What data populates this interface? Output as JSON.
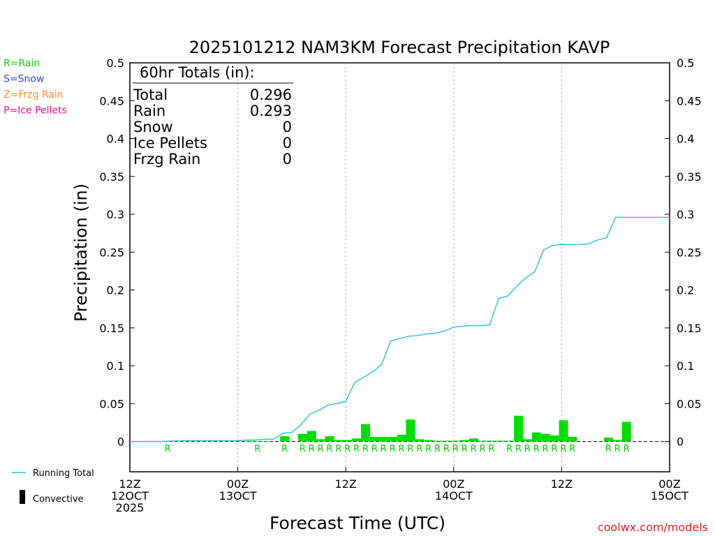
{
  "colors": {
    "rain": "#00dd00",
    "snow": "#3344ee",
    "frzg_rain": "#ff8833",
    "ice_pellets": "#ee1188",
    "running_total": "#22c4cc",
    "credit": "#e02020"
  },
  "type_legend": [
    {
      "text": "R=Rain",
      "color": "#11cc11"
    },
    {
      "text": "S=Snow",
      "color": "#3344ee"
    },
    {
      "text": "Z=Frzg Rain",
      "color": "#ff8833"
    },
    {
      "text": "P=Ice Pellets",
      "color": "#ee1188"
    }
  ],
  "series_legend": {
    "running_total": "Running Total",
    "convective": "Convective"
  },
  "totals": {
    "header": "60hr Totals (in):",
    "rows": [
      {
        "label": "Total",
        "value": "0.296"
      },
      {
        "label": "Rain",
        "value": "0.293"
      },
      {
        "label": "Snow",
        "value": "0"
      },
      {
        "label": "Ice Pellets",
        "value": "0"
      },
      {
        "label": "Frzg Rain",
        "value": "0"
      }
    ]
  },
  "credit": "coolwx.com/models",
  "chart_data": {
    "type": "bar",
    "title": "2025101212 NAM3KM Forecast Precipitation KAVP",
    "xlabel": "Forecast Time (UTC)",
    "ylabel": "Precipitation (in)",
    "ylim": [
      -0.04,
      0.5
    ],
    "xlim_hours": [
      0,
      60
    ],
    "yticks": [
      0,
      0.05,
      0.1,
      0.15,
      0.2,
      0.25,
      0.3,
      0.35,
      0.4,
      0.45,
      0.5
    ],
    "ytick_labels": [
      "0",
      "0.05",
      "0.1",
      "0.15",
      "0.2",
      "0.25",
      "0.3",
      "0.35",
      "0.4",
      "0.45",
      "0.5"
    ],
    "xticks": [
      {
        "hour": 0,
        "line1": "12Z",
        "line2": "12OCT",
        "line3": "2025"
      },
      {
        "hour": 12,
        "line1": "00Z",
        "line2": "13OCT",
        "line3": ""
      },
      {
        "hour": 24,
        "line1": "12Z",
        "line2": "",
        "line3": ""
      },
      {
        "hour": 36,
        "line1": "00Z",
        "line2": "14OCT",
        "line3": ""
      },
      {
        "hour": 48,
        "line1": "12Z",
        "line2": "",
        "line3": ""
      },
      {
        "hour": 60,
        "line1": "00Z",
        "line2": "15OCT",
        "line3": ""
      }
    ],
    "bars": [
      {
        "hour": 4.2,
        "value": 0.0005
      },
      {
        "hour": 13.4,
        "value": 0.0008
      },
      {
        "hour": 14.2,
        "value": 0.0005
      },
      {
        "hour": 15.2,
        "value": 0.0005
      },
      {
        "hour": 17.2,
        "value": 0.007
      },
      {
        "hour": 19.2,
        "value": 0.01
      },
      {
        "hour": 20.2,
        "value": 0.014
      },
      {
        "hour": 21.2,
        "value": 0.003
      },
      {
        "hour": 22.2,
        "value": 0.007
      },
      {
        "hour": 23.2,
        "value": 0.002
      },
      {
        "hour": 24.2,
        "value": 0.002
      },
      {
        "hour": 25.2,
        "value": 0.004
      },
      {
        "hour": 26.2,
        "value": 0.023
      },
      {
        "hour": 27.2,
        "value": 0.006
      },
      {
        "hour": 28.2,
        "value": 0.006
      },
      {
        "hour": 29.2,
        "value": 0.006
      },
      {
        "hour": 30.2,
        "value": 0.009
      },
      {
        "hour": 31.2,
        "value": 0.029
      },
      {
        "hour": 32.2,
        "value": 0.003
      },
      {
        "hour": 33.2,
        "value": 0.002
      },
      {
        "hour": 34.2,
        "value": 0.001
      },
      {
        "hour": 35.2,
        "value": 0.001
      },
      {
        "hour": 36.2,
        "value": 0.001
      },
      {
        "hour": 37.2,
        "value": 0.002
      },
      {
        "hour": 38.2,
        "value": 0.004
      },
      {
        "hour": 39.2,
        "value": 0.001
      },
      {
        "hour": 40.2,
        "value": 0.001
      },
      {
        "hour": 41.2,
        "value": 0.001
      },
      {
        "hour": 42.2,
        "value": 0.001
      },
      {
        "hour": 43.2,
        "value": 0.034
      },
      {
        "hour": 44.2,
        "value": 0.003
      },
      {
        "hour": 45.2,
        "value": 0.012
      },
      {
        "hour": 46.2,
        "value": 0.01
      },
      {
        "hour": 47.2,
        "value": 0.008
      },
      {
        "hour": 48.2,
        "value": 0.028
      },
      {
        "hour": 49.2,
        "value": 0.006
      },
      {
        "hour": 53.2,
        "value": 0.005
      },
      {
        "hour": 54.2,
        "value": 0.002
      },
      {
        "hour": 55.2,
        "value": 0.026
      }
    ],
    "running_total": {
      "hours": [
        0,
        3,
        6,
        9,
        12,
        13,
        14,
        15,
        16,
        17,
        18,
        19,
        20,
        21,
        22,
        23,
        24,
        25,
        26,
        27,
        28,
        29,
        30,
        31,
        32,
        33,
        34,
        35,
        36,
        37,
        38,
        39,
        40,
        41,
        42,
        43,
        44,
        45,
        46,
        47,
        48,
        49,
        50,
        51,
        52,
        53,
        54,
        55,
        56,
        60
      ],
      "values": [
        0,
        0,
        0.001,
        0.001,
        0.001,
        0.002,
        0.002,
        0.003,
        0.003,
        0.011,
        0.012,
        0.022,
        0.036,
        0.041,
        0.048,
        0.05,
        0.053,
        0.078,
        0.085,
        0.092,
        0.102,
        0.133,
        0.136,
        0.139,
        0.14,
        0.142,
        0.143,
        0.146,
        0.151,
        0.152,
        0.153,
        0.153,
        0.154,
        0.189,
        0.192,
        0.205,
        0.216,
        0.224,
        0.253,
        0.259,
        0.26,
        0.26,
        0.26,
        0.261,
        0.266,
        0.269,
        0.296,
        0.296,
        0.296,
        0.296
      ]
    },
    "precip_type_marks": [
      {
        "hour": 4.2,
        "type": "R"
      },
      {
        "hour": 14.2,
        "type": "R"
      },
      {
        "hour": 17.2,
        "type": "R"
      },
      {
        "hour": 19.2,
        "type": "R"
      },
      {
        "hour": 20.2,
        "type": "R"
      },
      {
        "hour": 21.2,
        "type": "R"
      },
      {
        "hour": 22.2,
        "type": "R"
      },
      {
        "hour": 23.2,
        "type": "R"
      },
      {
        "hour": 24.2,
        "type": "R"
      },
      {
        "hour": 25.2,
        "type": "R"
      },
      {
        "hour": 26.2,
        "type": "R"
      },
      {
        "hour": 27.2,
        "type": "R"
      },
      {
        "hour": 28.2,
        "type": "R"
      },
      {
        "hour": 29.2,
        "type": "R"
      },
      {
        "hour": 30.2,
        "type": "R"
      },
      {
        "hour": 31.2,
        "type": "R"
      },
      {
        "hour": 32.2,
        "type": "R"
      },
      {
        "hour": 33.2,
        "type": "R"
      },
      {
        "hour": 34.2,
        "type": "R"
      },
      {
        "hour": 35.2,
        "type": "R"
      },
      {
        "hour": 36.2,
        "type": "R"
      },
      {
        "hour": 37.2,
        "type": "R"
      },
      {
        "hour": 38.2,
        "type": "R"
      },
      {
        "hour": 39.2,
        "type": "R"
      },
      {
        "hour": 40.2,
        "type": "R"
      },
      {
        "hour": 42.2,
        "type": "R"
      },
      {
        "hour": 43.2,
        "type": "R"
      },
      {
        "hour": 44.2,
        "type": "R"
      },
      {
        "hour": 45.2,
        "type": "R"
      },
      {
        "hour": 46.2,
        "type": "R"
      },
      {
        "hour": 47.2,
        "type": "R"
      },
      {
        "hour": 48.2,
        "type": "R"
      },
      {
        "hour": 49.2,
        "type": "R"
      },
      {
        "hour": 53.2,
        "type": "R"
      },
      {
        "hour": 54.2,
        "type": "R"
      },
      {
        "hour": 55.2,
        "type": "R"
      }
    ]
  }
}
